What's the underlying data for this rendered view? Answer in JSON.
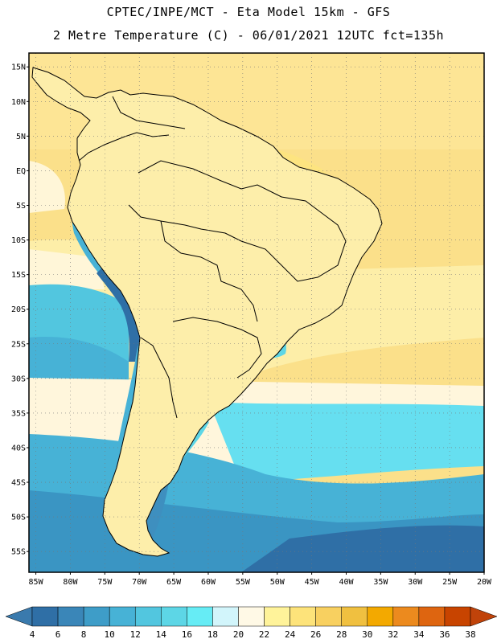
{
  "title": {
    "line1": "CPTEC/INPE/MCT -  Eta Model 15km - GFS",
    "line2": "2 Metre Temperature (C) - 06/01/2021 12UTC fct=135h"
  },
  "map": {
    "lat_range": [
      -58,
      17
    ],
    "lon_range": [
      -86,
      -20
    ],
    "lat_labels": [
      "15N",
      "10N",
      "5N",
      "EQ",
      "5S",
      "10S",
      "15S",
      "20S",
      "25S",
      "30S",
      "35S",
      "40S",
      "45S",
      "50S",
      "55S"
    ],
    "lat_values": [
      15,
      10,
      5,
      0,
      -5,
      -10,
      -15,
      -20,
      -25,
      -30,
      -35,
      -40,
      -45,
      -50,
      -55
    ],
    "lon_labels": [
      "85W",
      "80W",
      "75W",
      "70W",
      "65W",
      "60W",
      "55W",
      "50W",
      "45W",
      "40W",
      "35W",
      "30W",
      "25W",
      "20W"
    ],
    "lon_values": [
      -85,
      -80,
      -75,
      -70,
      -65,
      -60,
      -55,
      -50,
      -45,
      -40,
      -35,
      -30,
      -25,
      -20
    ]
  },
  "colorbar": {
    "labels": [
      "4",
      "6",
      "8",
      "10",
      "12",
      "14",
      "16",
      "18",
      "20",
      "22",
      "24",
      "26",
      "28",
      "30",
      "32",
      "34",
      "36",
      "38"
    ],
    "colors": [
      "#2f6fa6",
      "#3a86b8",
      "#3e9dc8",
      "#47b2d6",
      "#52c6df",
      "#5dd6e6",
      "#66ecf5",
      "#d2f5fb",
      "#fff9e6",
      "#fff39a",
      "#fde37a",
      "#f8d060",
      "#f0c040",
      "#f3a900",
      "#ec8a1e",
      "#de6510",
      "#c84400"
    ],
    "left_arrow_color": "#3a7aad",
    "right_arrow_color": "#c0430a"
  }
}
